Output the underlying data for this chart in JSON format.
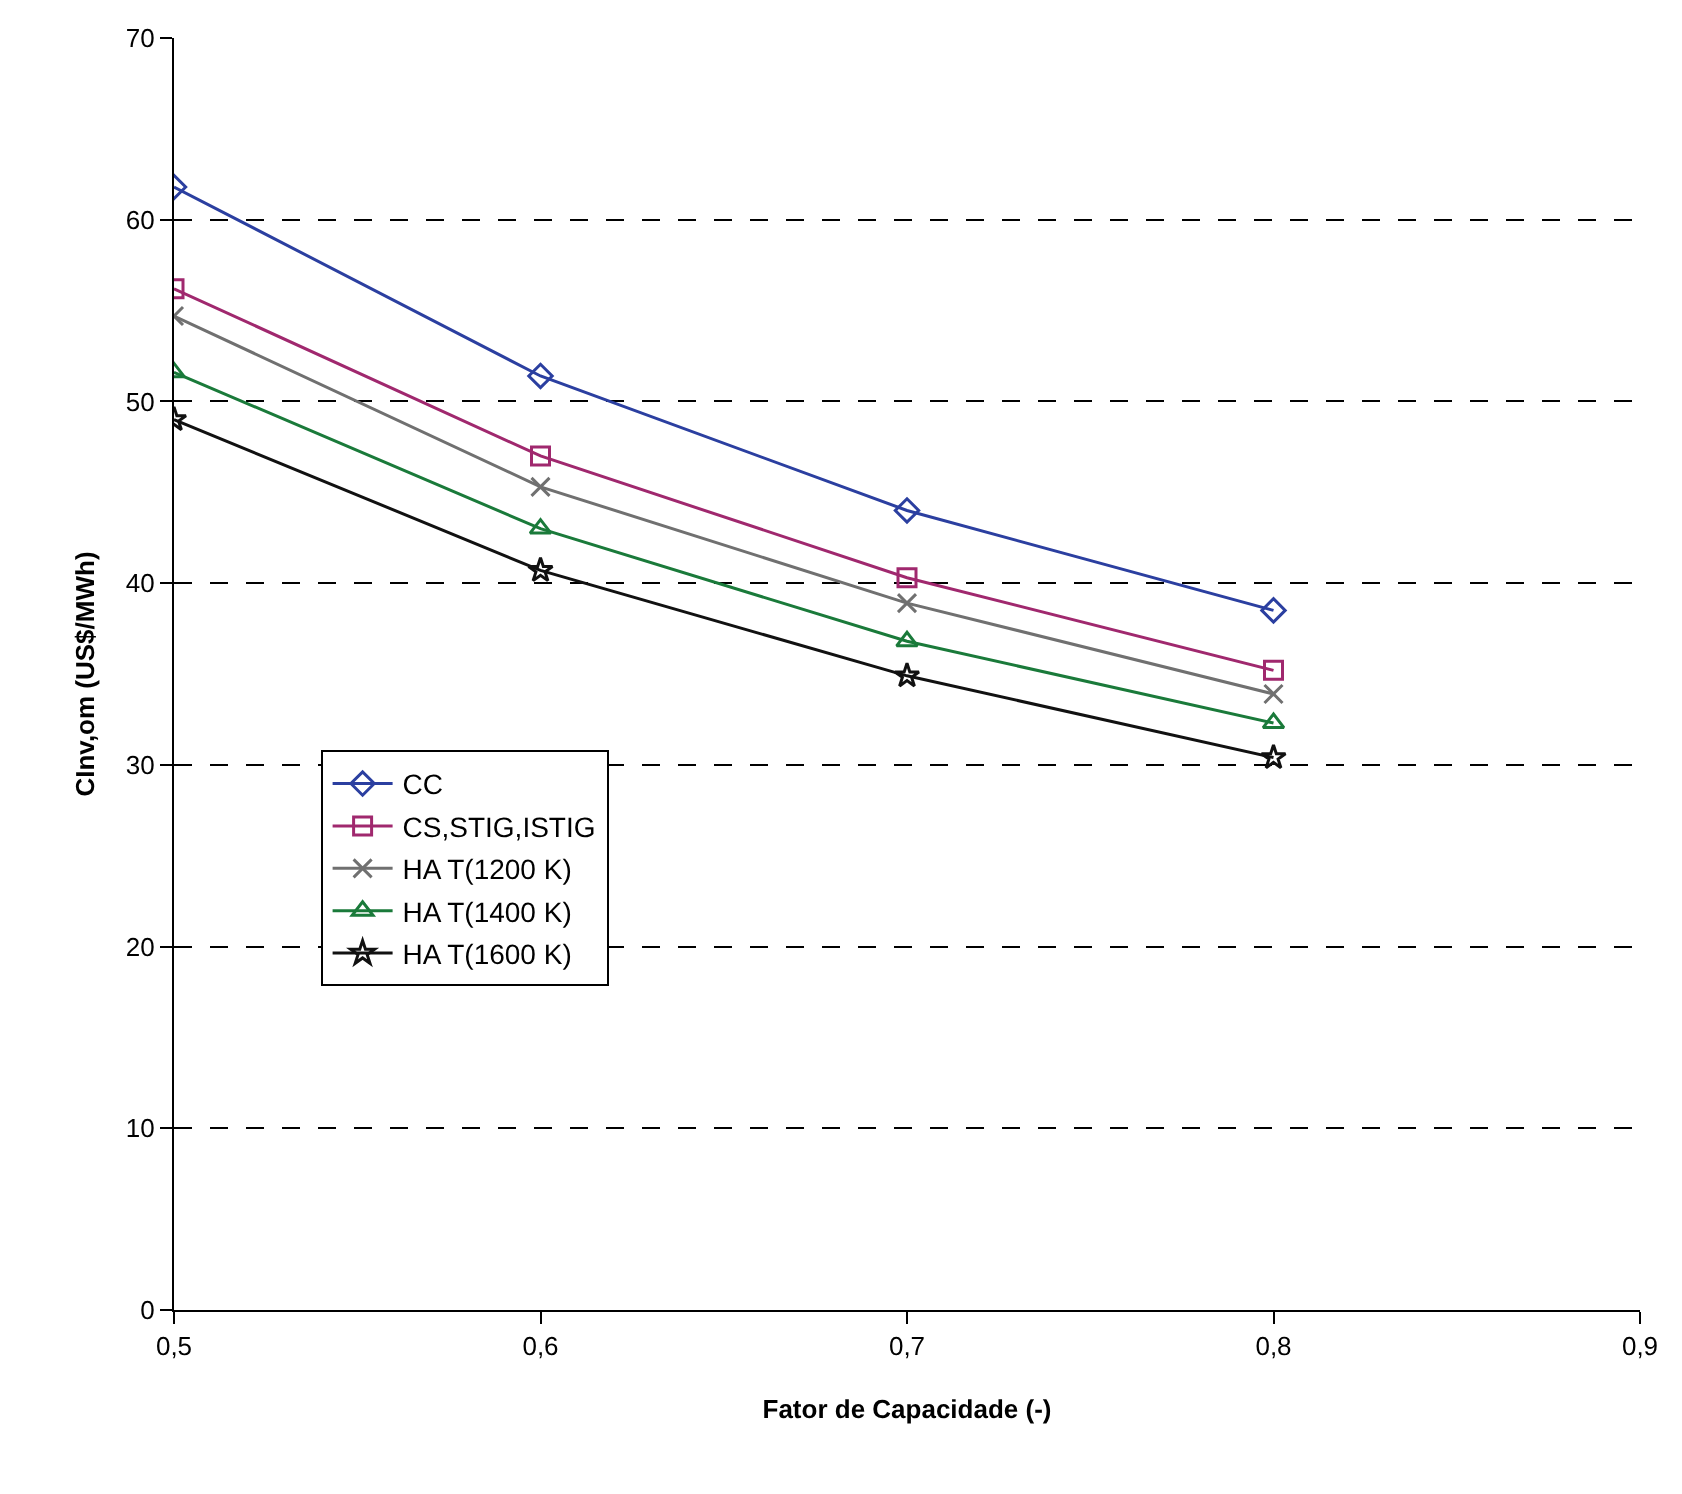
{
  "chart_data": {
    "type": "line",
    "xlabel": "Fator de Capacidade (-)",
    "ylabel": "CInv,om (US$/MWh)",
    "x": [
      0.5,
      0.6,
      0.7,
      0.8
    ],
    "series": [
      {
        "name": "CC",
        "color": "#2b3fa0",
        "marker": "diamond",
        "values": [
          61.8,
          51.4,
          44.0,
          38.5
        ]
      },
      {
        "name": "CS,STIG,ISTIG",
        "color": "#a0286e",
        "marker": "square",
        "values": [
          56.2,
          47.0,
          40.3,
          35.2
        ]
      },
      {
        "name": "HA T(1200 K)",
        "color": "#707070",
        "marker": "cross",
        "values": [
          54.7,
          45.3,
          38.9,
          33.9
        ]
      },
      {
        "name": "HA T(1400 K)",
        "color": "#1a7a3a",
        "marker": "triangle",
        "values": [
          51.6,
          43.0,
          36.8,
          32.3
        ]
      },
      {
        "name": "HA T(1600 K)",
        "color": "#111111",
        "marker": "star",
        "values": [
          49.0,
          40.7,
          34.9,
          30.4
        ]
      }
    ],
    "xlim": [
      0.5,
      0.9
    ],
    "xticks": [
      {
        "value": 0.5,
        "label": "0,5"
      },
      {
        "value": 0.6,
        "label": "0,6"
      },
      {
        "value": 0.7,
        "label": "0,7"
      },
      {
        "value": 0.8,
        "label": "0,8"
      },
      {
        "value": 0.9,
        "label": "0,9"
      }
    ],
    "ylim": [
      0,
      70
    ],
    "yticks": [
      0,
      10,
      20,
      30,
      40,
      50,
      60,
      70
    ],
    "grid": "y",
    "legend": "bottom left",
    "line_style": "solid"
  }
}
